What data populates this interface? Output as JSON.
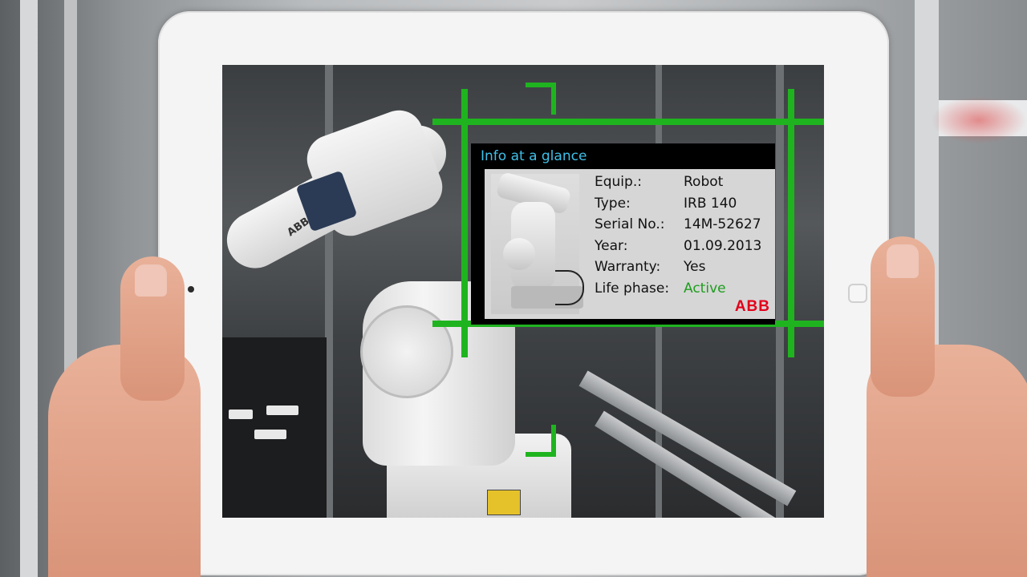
{
  "panel": {
    "title": "Info at a glance",
    "rows": [
      {
        "key": "Equip.:",
        "value": "Robot"
      },
      {
        "key": "Type:",
        "value": "IRB 140"
      },
      {
        "key": "Serial No.:",
        "value": "14M-52627"
      },
      {
        "key": "Year:",
        "value": "01.09.2013"
      },
      {
        "key": "Warranty:",
        "value": "Yes"
      },
      {
        "key": "Life phase:",
        "value": "Active"
      }
    ],
    "logo": "ABB"
  },
  "robot_label": "ABB",
  "colors": {
    "ar_frame": "#1fb41f",
    "panel_title": "#3ec0e8",
    "active_status": "#1e9c1e",
    "brand": "#e2001a"
  }
}
